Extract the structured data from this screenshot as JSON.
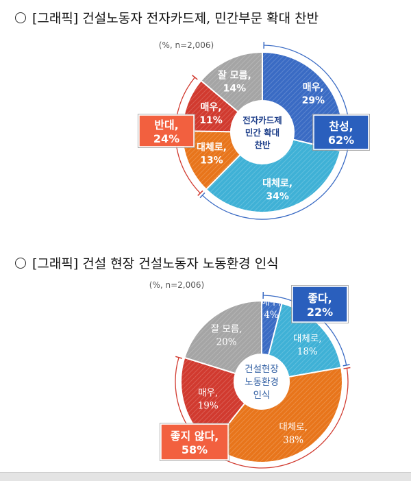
{
  "headings": {
    "h1": "[그래픽] 건설노동자 전자카드제, 민간부문 확대 찬반",
    "h2": "[그래픽] 건설 현장 건설노동자 노동환경 인식"
  },
  "chart_data": [
    {
      "type": "pie",
      "note": "(%, n=2,006)",
      "center_lines": [
        "전자카드제",
        "민간 확대",
        "찬반"
      ],
      "slices": [
        {
          "label": "매우,",
          "value": 29,
          "color": "#3a6bc4"
        },
        {
          "label": "대체로,",
          "value": 34,
          "color": "#3fb1d6"
        },
        {
          "label": "대체로,",
          "value": 13,
          "color": "#e8751b"
        },
        {
          "label": "매우,",
          "value": 11,
          "color": "#d13a2f"
        },
        {
          "label": "잘 모름,",
          "value": 14,
          "color": "#a5a5a5"
        }
      ],
      "groups": [
        {
          "label": "찬성,",
          "value": 62,
          "color": "#2a5fbd"
        },
        {
          "label": "반대,",
          "value": 24,
          "color": "#f2603f"
        }
      ]
    },
    {
      "type": "pie",
      "note": "(%, n=2,006)",
      "center_lines": [
        "건설현장",
        "노동환경",
        "인식"
      ],
      "slices": [
        {
          "label": "매우,",
          "value": 4,
          "color": "#3a6bc4"
        },
        {
          "label": "대체로,",
          "value": 18,
          "color": "#3fb1d6"
        },
        {
          "label": "대체로,",
          "value": 38,
          "color": "#e8751b"
        },
        {
          "label": "매우,",
          "value": 19,
          "color": "#d13a2f"
        },
        {
          "label": "잘 모름,",
          "value": 20,
          "color": "#a5a5a5"
        }
      ],
      "groups": [
        {
          "label": "좋다,",
          "value": 22,
          "color": "#2a5fbd"
        },
        {
          "label": "좋지 않다,",
          "value": 58,
          "color": "#f2603f"
        }
      ]
    }
  ]
}
